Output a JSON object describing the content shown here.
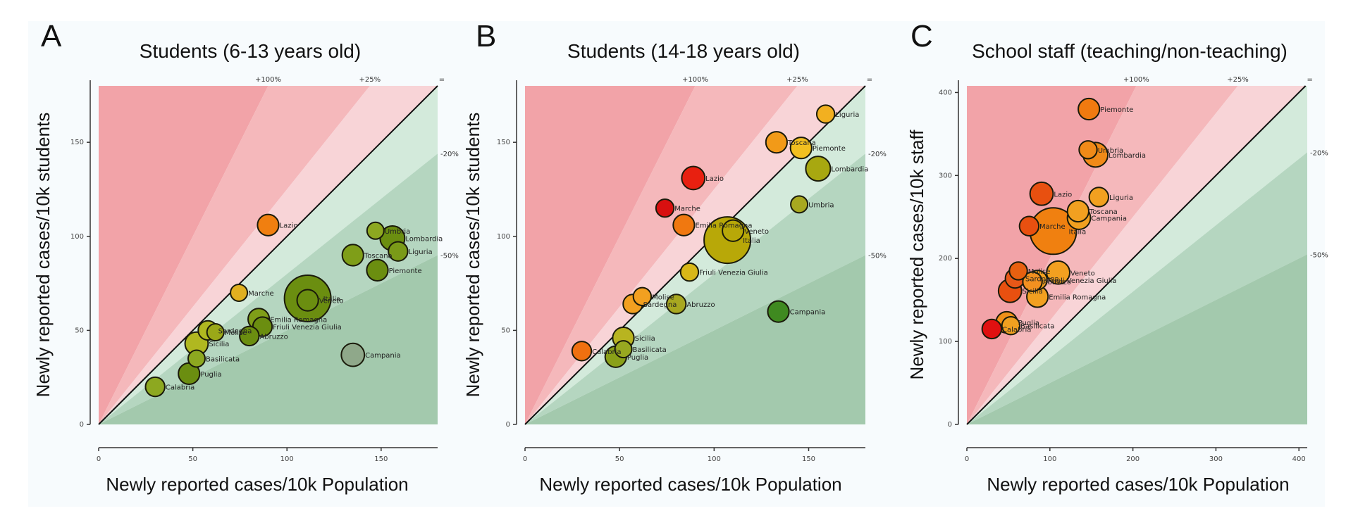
{
  "figure": {
    "panels": [
      "A",
      "B",
      "C"
    ]
  },
  "colors": {
    "zone_red_strong": "#f2a3a8",
    "zone_red_mid": "#f5b8bb",
    "zone_red_light": "#f8d4d7",
    "zone_green_light": "#d3eadb",
    "zone_green_mid": "#b5d6c0",
    "zone_green_strong": "#a3c9ad",
    "diagonal": "#111111"
  },
  "chart_data": [
    {
      "type": "scatter",
      "panel": "A",
      "title": "Students (6-13 years old)",
      "xlabel": "Newly reported cases/10k Population",
      "ylabel": "Newly reported cases/10k students",
      "xlim": [
        0,
        180
      ],
      "ylim": [
        0,
        180
      ],
      "xticks": [
        0,
        50,
        100,
        150
      ],
      "yticks": [
        0,
        50,
        100,
        150
      ],
      "reference_lines": [
        {
          "label": "+100%",
          "ratio": 2.0
        },
        {
          "label": "+25%",
          "ratio": 1.25
        },
        {
          "label": "=",
          "ratio": 1.0
        },
        {
          "label": "-20%",
          "ratio": 0.8
        },
        {
          "label": "-50%",
          "ratio": 0.5
        }
      ],
      "points": [
        {
          "name": "Lazio",
          "x": 90,
          "y": 106,
          "size": 2,
          "color": "#f07f10"
        },
        {
          "name": "Marche",
          "x": 74.5,
          "y": 70,
          "size": 1,
          "color": "#e0b020"
        },
        {
          "name": "Italia",
          "x": 111,
          "y": 67,
          "size": 10,
          "color": "#6b8e10"
        },
        {
          "name": "Veneto",
          "x": 111,
          "y": 66,
          "size": 2,
          "color": "#6b8e10"
        },
        {
          "name": "Umbria",
          "x": 147,
          "y": 103,
          "size": 1,
          "color": "#8da820"
        },
        {
          "name": "Lombardia",
          "x": 156,
          "y": 99,
          "size": 3,
          "color": "#6b8e10"
        },
        {
          "name": "Liguria",
          "x": 159,
          "y": 92,
          "size": 1.5,
          "color": "#7a9a18"
        },
        {
          "name": "Toscana",
          "x": 135,
          "y": 90,
          "size": 2,
          "color": "#7f9e18"
        },
        {
          "name": "Piemonte",
          "x": 148,
          "y": 82,
          "size": 2,
          "color": "#6b8e10"
        },
        {
          "name": "Emilia Romagna",
          "x": 85,
          "y": 56,
          "size": 2,
          "color": "#7f9e18"
        },
        {
          "name": "Friuli Venezia Giulia",
          "x": 87,
          "y": 52,
          "size": 1.5,
          "color": "#6b8e10"
        },
        {
          "name": "Abruzzo",
          "x": 80,
          "y": 47,
          "size": 1.5,
          "color": "#6b8e10"
        },
        {
          "name": "Sardegna",
          "x": 58,
          "y": 50,
          "size": 1.5,
          "color": "#b0b820"
        },
        {
          "name": "Molise",
          "x": 62,
          "y": 49,
          "size": 1,
          "color": "#9aa818"
        },
        {
          "name": "Sicilia",
          "x": 52,
          "y": 43,
          "size": 2.5,
          "color": "#b0b820"
        },
        {
          "name": "Basilicata",
          "x": 52,
          "y": 35,
          "size": 1,
          "color": "#8da820"
        },
        {
          "name": "Puglia",
          "x": 48,
          "y": 27,
          "size": 2,
          "color": "#6b8e10"
        },
        {
          "name": "Calabria",
          "x": 30,
          "y": 20,
          "size": 1.5,
          "color": "#8da820"
        },
        {
          "name": "Campania",
          "x": 135,
          "y": 37,
          "size": 2.5,
          "color": "#8fa88a"
        }
      ]
    },
    {
      "type": "scatter",
      "panel": "B",
      "title": "Students (14-18 years old)",
      "xlabel": "Newly reported cases/10k Population",
      "ylabel": "Newly reported cases/10k students",
      "xlim": [
        0,
        180
      ],
      "ylim": [
        0,
        180
      ],
      "xticks": [
        0,
        50,
        100,
        150
      ],
      "yticks": [
        0,
        50,
        100,
        150
      ],
      "reference_lines": [
        {
          "label": "+100%",
          "ratio": 2.0
        },
        {
          "label": "+25%",
          "ratio": 1.25
        },
        {
          "label": "=",
          "ratio": 1.0
        },
        {
          "label": "-20%",
          "ratio": 0.8
        },
        {
          "label": "-50%",
          "ratio": 0.5
        }
      ],
      "points": [
        {
          "name": "Liguria",
          "x": 159,
          "y": 165,
          "size": 1.2,
          "color": "#f2b020"
        },
        {
          "name": "Toscana",
          "x": 133,
          "y": 150,
          "size": 2,
          "color": "#f29a18"
        },
        {
          "name": "Piemonte",
          "x": 146,
          "y": 147,
          "size": 2,
          "color": "#f2c020"
        },
        {
          "name": "Lombardia",
          "x": 155,
          "y": 136,
          "size": 3,
          "color": "#a8a810"
        },
        {
          "name": "Umbria",
          "x": 145,
          "y": 117,
          "size": 1,
          "color": "#a8a820"
        },
        {
          "name": "Lazio",
          "x": 89,
          "y": 131,
          "size": 2.5,
          "color": "#e82010"
        },
        {
          "name": "Marche",
          "x": 74,
          "y": 115,
          "size": 1.2,
          "color": "#d81010"
        },
        {
          "name": "Emilia Romagna",
          "x": 84,
          "y": 106,
          "size": 2,
          "color": "#f07810"
        },
        {
          "name": "Italia",
          "x": 107,
          "y": 98,
          "size": 10,
          "color": "#b8a808"
        },
        {
          "name": "Veneto",
          "x": 110,
          "y": 103,
          "size": 2,
          "color": "#b8a808"
        },
        {
          "name": "Friuli Venezia Giulia",
          "x": 87,
          "y": 81,
          "size": 1.2,
          "color": "#d8b818"
        },
        {
          "name": "Molise",
          "x": 62,
          "y": 68,
          "size": 1.2,
          "color": "#f2a020"
        },
        {
          "name": "Sardegna",
          "x": 57,
          "y": 64,
          "size": 1.5,
          "color": "#f2a020"
        },
        {
          "name": "Abruzzo",
          "x": 80,
          "y": 64,
          "size": 1.5,
          "color": "#a8a820"
        },
        {
          "name": "Campania",
          "x": 134,
          "y": 60,
          "size": 2,
          "color": "#3f8a20"
        },
        {
          "name": "Sicilia",
          "x": 52,
          "y": 46,
          "size": 2,
          "color": "#b8b420"
        },
        {
          "name": "Basilicata",
          "x": 52,
          "y": 40,
          "size": 1,
          "color": "#98a820"
        },
        {
          "name": "Puglia",
          "x": 48,
          "y": 36,
          "size": 2,
          "color": "#8aa018"
        },
        {
          "name": "Calabria",
          "x": 30,
          "y": 39,
          "size": 1.5,
          "color": "#f07010"
        }
      ]
    },
    {
      "type": "scatter",
      "panel": "C",
      "title": "School staff (teaching/non-teaching)",
      "xlabel": "Newly reported cases/10k Population",
      "ylabel": "Newly reported cases/10k staff",
      "xlim": [
        0,
        410
      ],
      "ylim": [
        0,
        408
      ],
      "xticks": [
        0,
        100,
        200,
        300,
        400
      ],
      "yticks": [
        0,
        100,
        200,
        300,
        400
      ],
      "reference_lines": [
        {
          "label": "+100%",
          "ratio": 2.0
        },
        {
          "label": "+25%",
          "ratio": 1.25
        },
        {
          "label": "=",
          "ratio": 1.0
        },
        {
          "label": "-20%",
          "ratio": 0.8
        },
        {
          "label": "-50%",
          "ratio": 0.5
        }
      ],
      "points": [
        {
          "name": "Piemonte",
          "x": 147,
          "y": 380,
          "size": 2,
          "color": "#f07a10"
        },
        {
          "name": "Umbria",
          "x": 146,
          "y": 331,
          "size": 1.2,
          "color": "#f08a18"
        },
        {
          "name": "Lombardia",
          "x": 155,
          "y": 325,
          "size": 3,
          "color": "#f08a18"
        },
        {
          "name": "Lazio",
          "x": 90,
          "y": 278,
          "size": 2.5,
          "color": "#e85010"
        },
        {
          "name": "Liguria",
          "x": 159,
          "y": 274,
          "size": 1.5,
          "color": "#f2a020"
        },
        {
          "name": "Toscana",
          "x": 134,
          "y": 257,
          "size": 2,
          "color": "#f2a020"
        },
        {
          "name": "Campania",
          "x": 135,
          "y": 249,
          "size": 2.5,
          "color": "#f2a020"
        },
        {
          "name": "Italia",
          "x": 104,
          "y": 233,
          "size": 10,
          "color": "#f08010"
        },
        {
          "name": "Marche",
          "x": 75,
          "y": 239,
          "size": 1.5,
          "color": "#e85010"
        },
        {
          "name": "Molise",
          "x": 62,
          "y": 185,
          "size": 1.2,
          "color": "#e86010"
        },
        {
          "name": "Sardegna",
          "x": 58,
          "y": 176,
          "size": 1.5,
          "color": "#e85818"
        },
        {
          "name": "Veneto",
          "x": 110,
          "y": 183,
          "size": 2.5,
          "color": "#f2a020"
        },
        {
          "name": "Friuli Venezia Giulia",
          "x": 85,
          "y": 174,
          "size": 1.5,
          "color": "#f2a020"
        },
        {
          "name": "Abruzzo",
          "x": 79,
          "y": 172,
          "size": 1.5,
          "color": "#f29020"
        },
        {
          "name": "Sicilia",
          "x": 52,
          "y": 161,
          "size": 2.5,
          "color": "#e85010"
        },
        {
          "name": "Emilia Romagna",
          "x": 85,
          "y": 154,
          "size": 2,
          "color": "#f2a020"
        },
        {
          "name": "Puglia",
          "x": 48,
          "y": 123,
          "size": 2,
          "color": "#f09018"
        },
        {
          "name": "Basilicata",
          "x": 53,
          "y": 119,
          "size": 1.2,
          "color": "#f0a020"
        },
        {
          "name": "Calabria",
          "x": 30,
          "y": 115,
          "size": 1.5,
          "color": "#e01010"
        }
      ]
    }
  ]
}
